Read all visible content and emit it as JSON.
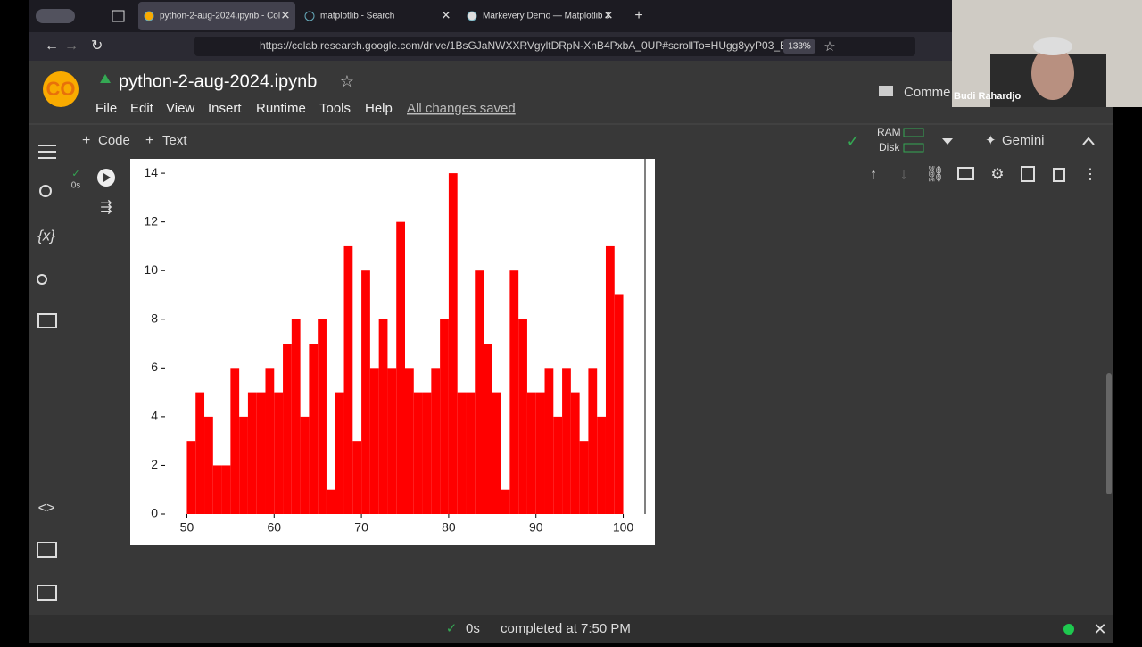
{
  "browser": {
    "tabs": [
      "python-2-aug-2024.ipynb - Col",
      "matplotlib - Search",
      "Markevery Demo — Matplotlib 3"
    ],
    "url": "https://colab.research.google.com/drive/1BsGJaNWXXRVgyltDRpN-XnB4PxbA_0UP#scrollTo=HUgg8yyP03_E",
    "zoom": "133%"
  },
  "notebook": {
    "title": "python-2-aug-2024.ipynb",
    "menu": [
      "File",
      "Edit",
      "View",
      "Insert",
      "Runtime",
      "Tools",
      "Help"
    ],
    "save_status": "All changes saved",
    "toolbar": {
      "add_code": "Code",
      "add_text": "Text",
      "ram": "RAM",
      "disk": "Disk",
      "gemini": "Gemini",
      "comments": "Comme"
    },
    "cell_time": "0s"
  },
  "status_bar": {
    "time": "0s",
    "message": "completed at 7:50 PM"
  },
  "video_overlay": {
    "name": "Budi Rahardjo"
  },
  "chart_data": {
    "type": "histogram",
    "color": "#ff0000",
    "bins": [
      50,
      51,
      52,
      53,
      54,
      55,
      56,
      57,
      58,
      59,
      60,
      61,
      62,
      63,
      64,
      65,
      66,
      67,
      68,
      69,
      70,
      71,
      72,
      73,
      74,
      75,
      76,
      77,
      78,
      79,
      80,
      81,
      82,
      83,
      84,
      85,
      86,
      87,
      88,
      89,
      90,
      91,
      92,
      93,
      94,
      95,
      96,
      97,
      98,
      99,
      100
    ],
    "values": [
      3,
      5,
      4,
      2,
      2,
      6,
      4,
      5,
      5,
      6,
      5,
      7,
      8,
      4,
      7,
      8,
      1,
      5,
      11,
      3,
      10,
      6,
      8,
      6,
      12,
      6,
      5,
      5,
      6,
      8,
      14,
      5,
      5,
      10,
      7,
      5,
      1,
      10,
      8,
      5,
      5,
      6,
      4,
      6,
      5,
      3,
      6,
      4,
      11,
      9
    ],
    "xlim": [
      47.5,
      102.5
    ],
    "ylim": [
      0,
      14.7
    ],
    "xticks": [
      50,
      60,
      70,
      80,
      90,
      100
    ],
    "yticks": [
      0,
      2,
      4,
      6,
      8,
      10,
      12,
      14
    ]
  }
}
